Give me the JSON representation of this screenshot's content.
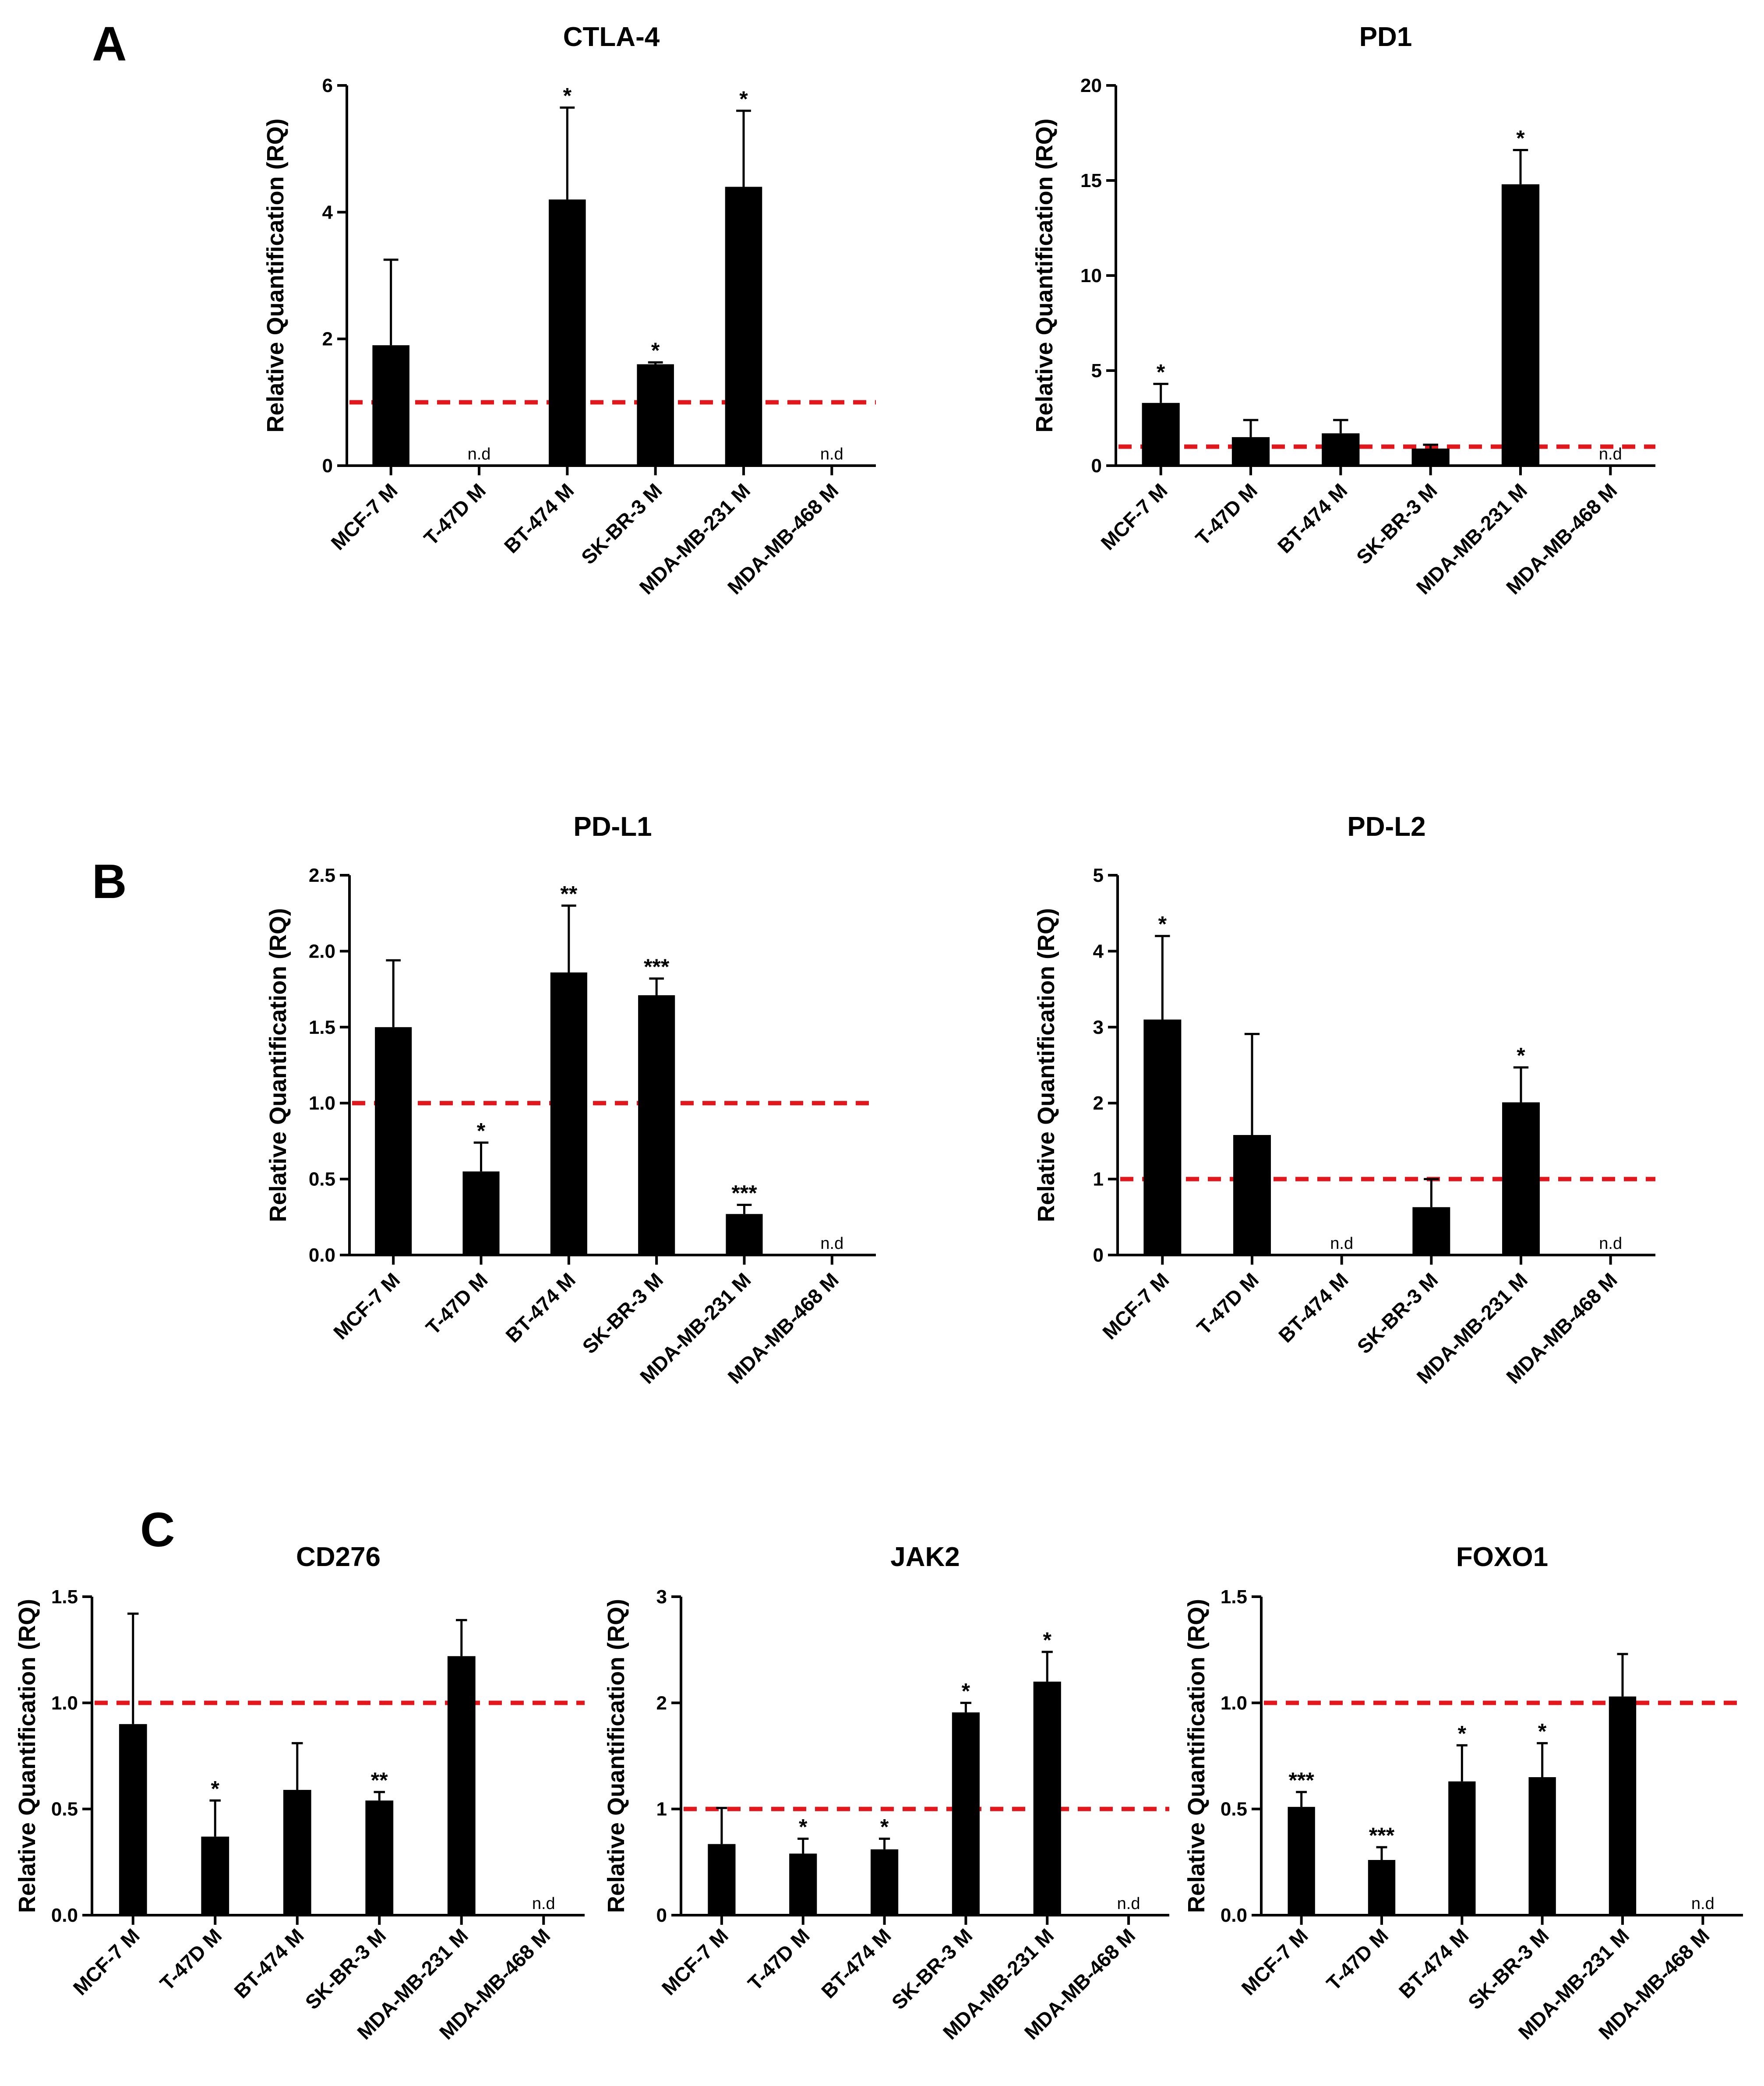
{
  "panels": [
    "A",
    "B",
    "C"
  ],
  "colors": {
    "bar": "#000000",
    "reference": "#e3161b",
    "axis": "#000000"
  },
  "chart_data": [
    {
      "type": "bar",
      "title": "CTLA-4",
      "panel": "A",
      "ylabel": "Relative Quantification (RQ)",
      "categories": [
        "MCF-7 M",
        "T-47D M",
        "BT-474 M",
        "SK-BR-3 M",
        "MDA-MB-231 M",
        "MDA-MB-468 M"
      ],
      "values": [
        1.9,
        null,
        4.2,
        1.6,
        4.4,
        null
      ],
      "errors": [
        1.35,
        null,
        1.45,
        0.03,
        1.2,
        null
      ],
      "significance": [
        "",
        "",
        "*",
        "*",
        "*",
        ""
      ],
      "not_detected": [
        "",
        "n.d",
        "",
        "",
        "",
        "n.d"
      ],
      "ylim": [
        0,
        6
      ],
      "yticks": [
        "0",
        "2",
        "4",
        "6"
      ],
      "reference_line": 1
    },
    {
      "type": "bar",
      "title": "PD1",
      "panel": "A",
      "ylabel": "Relative Quantification (RQ)",
      "categories": [
        "MCF-7 M",
        "T-47D M",
        "BT-474 M",
        "SK-BR-3 M",
        "MDA-MB-231 M",
        "MDA-MB-468 M"
      ],
      "values": [
        3.3,
        1.5,
        1.7,
        0.9,
        14.8,
        null
      ],
      "errors": [
        1.0,
        0.9,
        0.7,
        0.2,
        1.8,
        null
      ],
      "significance": [
        "*",
        "",
        "",
        "",
        "*",
        ""
      ],
      "not_detected": [
        "",
        "",
        "",
        "",
        "",
        "n.d"
      ],
      "ylim": [
        0,
        20
      ],
      "yticks": [
        "0",
        "5",
        "10",
        "15",
        "20"
      ],
      "reference_line": 1
    },
    {
      "type": "bar",
      "title": "PD-L1",
      "panel": "B",
      "ylabel": "Relative Quantification (RQ)",
      "categories": [
        "MCF-7 M",
        "T-47D M",
        "BT-474 M",
        "SK-BR-3 M",
        "MDA-MB-231 M",
        "MDA-MB-468 M"
      ],
      "values": [
        1.5,
        0.55,
        1.86,
        1.71,
        0.27,
        null
      ],
      "errors": [
        0.44,
        0.19,
        0.44,
        0.11,
        0.06,
        null
      ],
      "significance": [
        "",
        "*",
        "**",
        "***",
        "***",
        ""
      ],
      "not_detected": [
        "",
        "",
        "",
        "",
        "",
        "n.d"
      ],
      "ylim": [
        0,
        2.5
      ],
      "yticks": [
        "0.0",
        "0.5",
        "1.0",
        "1.5",
        "2.0",
        "2.5"
      ],
      "reference_line": 1
    },
    {
      "type": "bar",
      "title": "PD-L2",
      "panel": "B",
      "ylabel": "Relative Quantification (RQ)",
      "categories": [
        "MCF-7 M",
        "T-47D M",
        "BT-474 M",
        "SK-BR-3 M",
        "MDA-MB-231 M",
        "MDA-MB-468 M"
      ],
      "values": [
        3.1,
        1.58,
        null,
        0.63,
        2.01,
        null
      ],
      "errors": [
        1.1,
        1.33,
        null,
        0.37,
        0.46,
        null
      ],
      "significance": [
        "*",
        "",
        "",
        "",
        "*",
        ""
      ],
      "not_detected": [
        "",
        "",
        "n.d",
        "",
        "",
        "n.d"
      ],
      "ylim": [
        0,
        5
      ],
      "yticks": [
        "0",
        "1",
        "2",
        "3",
        "4",
        "5"
      ],
      "reference_line": 1
    },
    {
      "type": "bar",
      "title": "CD276",
      "panel": "C",
      "ylabel": "Relative Quantification (RQ)",
      "categories": [
        "MCF-7 M",
        "T-47D M",
        "BT-474 M",
        "SK-BR-3 M",
        "MDA-MB-231 M",
        "MDA-MB-468 M"
      ],
      "values": [
        0.9,
        0.37,
        0.59,
        0.54,
        1.22,
        null
      ],
      "errors": [
        0.52,
        0.17,
        0.22,
        0.04,
        0.17,
        null
      ],
      "significance": [
        "",
        "*",
        "",
        "**",
        "",
        ""
      ],
      "not_detected": [
        "",
        "",
        "",
        "",
        "",
        "n.d"
      ],
      "ylim": [
        0,
        1.5
      ],
      "yticks": [
        "0.0",
        "0.5",
        "1.0",
        "1.5"
      ],
      "reference_line": 1
    },
    {
      "type": "bar",
      "title": "JAK2",
      "panel": "C",
      "ylabel": "Relative Quantification (RQ)",
      "categories": [
        "MCF-7 M",
        "T-47D M",
        "BT-474 M",
        "SK-BR-3 M",
        "MDA-MB-231 M",
        "MDA-MB-468 M"
      ],
      "values": [
        0.67,
        0.58,
        0.62,
        1.91,
        2.2,
        null
      ],
      "errors": [
        0.34,
        0.14,
        0.1,
        0.09,
        0.28,
        null
      ],
      "significance": [
        "",
        "*",
        "*",
        "*",
        "*",
        ""
      ],
      "not_detected": [
        "",
        "",
        "",
        "",
        "",
        "n.d"
      ],
      "ylim": [
        0,
        3
      ],
      "yticks": [
        "0",
        "1",
        "2",
        "3"
      ],
      "reference_line": 1
    },
    {
      "type": "bar",
      "title": "FOXO1",
      "panel": "C",
      "ylabel": "Relative Quantification (RQ)",
      "categories": [
        "MCF-7 M",
        "T-47D M",
        "BT-474 M",
        "SK-BR-3 M",
        "MDA-MB-231 M",
        "MDA-MB-468 M"
      ],
      "values": [
        0.51,
        0.26,
        0.63,
        0.65,
        1.03,
        null
      ],
      "errors": [
        0.07,
        0.06,
        0.17,
        0.16,
        0.2,
        null
      ],
      "significance": [
        "***",
        "***",
        "*",
        "*",
        "",
        ""
      ],
      "not_detected": [
        "",
        "",
        "",
        "",
        "",
        "n.d"
      ],
      "ylim": [
        0,
        1.5
      ],
      "yticks": [
        "0.0",
        "0.5",
        "1.0",
        "1.5"
      ],
      "reference_line": 1
    }
  ]
}
